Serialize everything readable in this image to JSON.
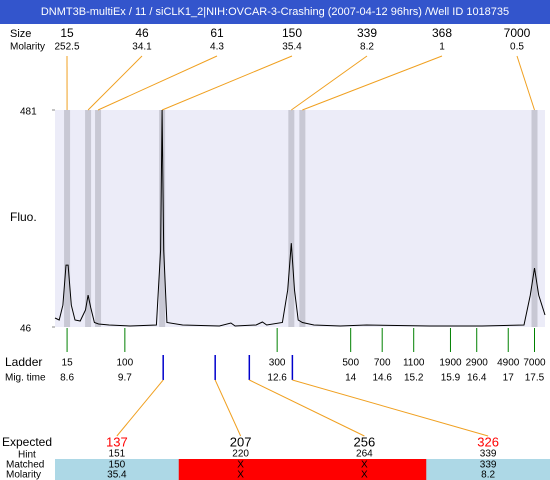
{
  "title": "DNMT3B-multiEx / 11 / siCLK1_2|NIH:OVCAR-3-Crashing (2007-04-12 96hrs) /Well ID 1018735",
  "chart_data": {
    "type": "line",
    "ylabel": "Fluo.",
    "ylim": [
      46,
      481
    ],
    "yticks": [
      46,
      481
    ],
    "xlim": [
      8.37,
      17.7
    ],
    "x": [
      8.37,
      8.45,
      8.52,
      8.58,
      8.62,
      8.68,
      8.75,
      8.85,
      8.95,
      9.0,
      9.05,
      9.12,
      9.2,
      9.4,
      9.8,
      10.3,
      10.38,
      10.41,
      10.44,
      10.5,
      10.8,
      11.5,
      11.72,
      11.8,
      12.2,
      12.32,
      12.4,
      12.7,
      12.8,
      12.87,
      12.93,
      13.0,
      13.08,
      13.3,
      13.8,
      14.3,
      15.5,
      16.5,
      17.3,
      17.42,
      17.5,
      17.58,
      17.7
    ],
    "series": [
      {
        "color": "#000000",
        "values": [
          64,
          60,
          90,
          170,
          170,
          90,
          60,
          58,
          80,
          110,
          85,
          55,
          52,
          50,
          48,
          50,
          200,
          481,
          200,
          55,
          50,
          48,
          54,
          48,
          50,
          56,
          50,
          55,
          120,
          214,
          120,
          60,
          55,
          50,
          48,
          50,
          48,
          48,
          50,
          110,
          164,
          110,
          70
        ]
      }
    ],
    "peaks": {
      "size_label": "Size",
      "molarity_label": "Molarity",
      "color": "#f0a020",
      "band_color": "#c8c8d4",
      "items": [
        {
          "size": 15,
          "molarity": 252.5,
          "time": 8.6
        },
        {
          "size": 46,
          "molarity": 34.1,
          "time": 9.0
        },
        {
          "size": 61,
          "molarity": 4.3,
          "time": 9.19
        },
        {
          "size": 150,
          "molarity": 35.4,
          "time": 10.41
        },
        {
          "size": 339,
          "molarity": 8.2,
          "time": 12.87
        },
        {
          "size": 368,
          "molarity": 1,
          "time": 13.08
        },
        {
          "size": 7000,
          "molarity": 0.5,
          "time": 17.5
        }
      ]
    },
    "ladder": {
      "label": "Ladder",
      "time_label": "Mig. time",
      "color": "#008000",
      "items": [
        {
          "size": 15,
          "time": 8.6
        },
        {
          "size": 100,
          "time": 9.7
        },
        {
          "size": 300,
          "time": 12.6
        },
        {
          "size": 500,
          "time": 14
        },
        {
          "size": 700,
          "time": 14.6
        },
        {
          "size": 1100,
          "time": 15.2
        },
        {
          "size": 1900,
          "time": 15.9
        },
        {
          "size": 2900,
          "time": 16.4
        },
        {
          "size": 4900,
          "time": 17
        },
        {
          "size": 7000,
          "time": 17.5
        }
      ]
    },
    "expected": {
      "expected_label": "Expected",
      "hint_label": "Hint",
      "matched_label": "Matched",
      "molarity_label": "Molarity",
      "marker_color": "#0000cc",
      "items": [
        {
          "expected": 137,
          "hint": 151,
          "matched": 150,
          "molarity": 35.4,
          "time": 10.43,
          "color": "#ff0000",
          "fill": "#add8e6"
        },
        {
          "expected": 207,
          "hint": 220,
          "matched": "X",
          "molarity": "X",
          "time": 11.42,
          "color": "#000000",
          "fill": "#ff0000"
        },
        {
          "expected": 256,
          "hint": 264,
          "matched": "X",
          "molarity": "X",
          "time": 12.07,
          "color": "#000000",
          "fill": "#ff0000"
        },
        {
          "expected": 326,
          "hint": 339,
          "matched": 339,
          "molarity": 8.2,
          "time": 12.89,
          "color": "#ff0000",
          "fill": "#add8e6"
        }
      ]
    }
  }
}
